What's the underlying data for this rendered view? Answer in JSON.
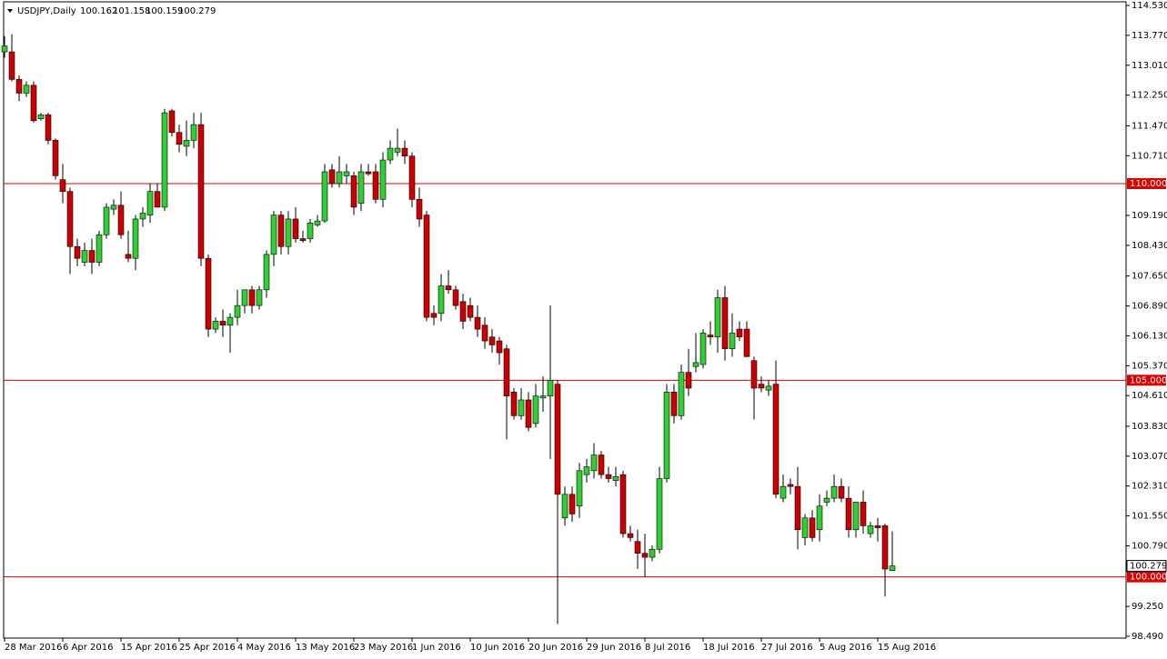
{
  "header": {
    "symbol": "USDJPY,Daily",
    "ohlc": [
      "100.162",
      "101.158",
      "100.159",
      "100.279"
    ]
  },
  "chart_data": {
    "type": "candlestick",
    "up_color": "#32cd32",
    "down_color": "#cc0000",
    "wick_color": "#000000",
    "hline_color": "#dd0000",
    "ylim": [
      98.49,
      114.53
    ],
    "yticks": [
      {
        "value": 114.53,
        "label": "114.530"
      },
      {
        "value": 113.77,
        "label": "113.770"
      },
      {
        "value": 113.01,
        "label": "113.010"
      },
      {
        "value": 112.25,
        "label": "112.250"
      },
      {
        "value": 111.47,
        "label": "111.470"
      },
      {
        "value": 110.71,
        "label": "110.710"
      },
      {
        "value": 109.19,
        "label": "109.190"
      },
      {
        "value": 108.43,
        "label": "108.430"
      },
      {
        "value": 107.65,
        "label": "107.650"
      },
      {
        "value": 106.89,
        "label": "106.890"
      },
      {
        "value": 106.13,
        "label": "106.130"
      },
      {
        "value": 105.37,
        "label": "105.370"
      },
      {
        "value": 104.61,
        "label": "104.610"
      },
      {
        "value": 103.83,
        "label": "103.830"
      },
      {
        "value": 103.07,
        "label": "103.070"
      },
      {
        "value": 102.31,
        "label": "102.310"
      },
      {
        "value": 101.55,
        "label": "101.550"
      },
      {
        "value": 100.79,
        "label": "100.790"
      },
      {
        "value": 99.25,
        "label": "99.250"
      },
      {
        "value": 98.49,
        "label": "98.490"
      }
    ],
    "hlines": [
      {
        "value": 110,
        "label": "110.000"
      },
      {
        "value": 105,
        "label": "105.000"
      },
      {
        "value": 100,
        "label": "100.000"
      }
    ],
    "last_price": {
      "value": 100.279,
      "label": "100.279"
    },
    "categories": [
      "28 Mar 2016",
      null,
      null,
      null,
      null,
      null,
      null,
      null,
      "6 Apr 2016",
      null,
      null,
      null,
      null,
      null,
      null,
      null,
      "15 Apr 2016",
      null,
      null,
      null,
      null,
      null,
      null,
      null,
      "25 Apr 2016",
      null,
      null,
      null,
      null,
      null,
      null,
      null,
      "4 May 2016",
      null,
      null,
      null,
      null,
      null,
      null,
      null,
      "13 May 2016",
      null,
      null,
      null,
      null,
      null,
      null,
      null,
      "23 May 2016",
      null,
      null,
      null,
      null,
      null,
      null,
      null,
      "1 Jun 2016",
      null,
      null,
      null,
      null,
      null,
      null,
      null,
      "10 Jun 2016",
      null,
      null,
      null,
      null,
      null,
      null,
      null,
      "20 Jun 2016",
      null,
      null,
      null,
      null,
      null,
      null,
      null,
      "29 Jun 2016",
      null,
      null,
      null,
      null,
      null,
      null,
      null,
      "8 Jul 2016",
      null,
      null,
      null,
      null,
      null,
      null,
      null,
      "18 Jul 2016",
      null,
      null,
      null,
      null,
      null,
      null,
      null,
      "27 Jul 2016",
      null,
      null,
      null,
      null,
      null,
      null,
      null,
      "5 Aug 2016",
      null,
      null,
      null,
      null,
      null,
      null,
      null,
      "15 Aug 2016",
      null,
      null
    ],
    "open": [
      113.35,
      113.35,
      112.65,
      112.3,
      112.5,
      111.65,
      111.75,
      111.1,
      110.1,
      109.8,
      108.4,
      108.0,
      108.3,
      108.0,
      108.7,
      109.35,
      109.45,
      108.2,
      108.1,
      109.1,
      109.2,
      109.8,
      109.4,
      111.85,
      111.3,
      110.95,
      111.1,
      111.5,
      108.1,
      106.3,
      106.5,
      106.4,
      106.6,
      106.9,
      107.3,
      106.9,
      107.3,
      108.2,
      109.2,
      108.4,
      109.1,
      108.6,
      108.6,
      108.95,
      109.05,
      110.35,
      110.0,
      110.2,
      110.2,
      109.5,
      110.3,
      110.3,
      109.6,
      110.6,
      110.8,
      110.9,
      110.7,
      109.6,
      109.2,
      106.7,
      106.7,
      107.4,
      107.3,
      107.0,
      106.9,
      106.6,
      106.4,
      106.1,
      106.0,
      105.8,
      104.7,
      104.1,
      104.5,
      103.9,
      104.55,
      104.6,
      104.9,
      101.5,
      102.1,
      101.8,
      102.6,
      102.7,
      103.1,
      102.6,
      102.45,
      102.6,
      101.1,
      100.9,
      100.6,
      100.5,
      100.7,
      102.5,
      104.7,
      104.1,
      105.2,
      105.35,
      105.4,
      106.15,
      106.1,
      107.1,
      105.8,
      106.3,
      106.3,
      105.5,
      104.9,
      104.75,
      104.9,
      102.0,
      102.35,
      102.3,
      101.0,
      101.5,
      101.2,
      101.9,
      102.0,
      102.3,
      102.0,
      101.2,
      101.9,
      101.1,
      101.3,
      101.3,
      100.162
    ],
    "high": [
      113.75,
      113.8,
      112.75,
      112.6,
      112.6,
      111.8,
      111.8,
      111.15,
      110.5,
      109.9,
      108.6,
      108.5,
      108.6,
      108.8,
      109.5,
      109.6,
      109.8,
      108.8,
      109.2,
      109.4,
      110.0,
      110.0,
      111.9,
      111.9,
      111.5,
      111.6,
      111.8,
      111.8,
      108.2,
      106.6,
      106.8,
      106.7,
      107.3,
      107.3,
      107.4,
      107.4,
      108.3,
      109.3,
      109.3,
      109.3,
      109.4,
      108.8,
      109.1,
      109.2,
      110.5,
      110.5,
      110.7,
      110.5,
      110.3,
      110.5,
      110.5,
      110.5,
      110.8,
      111.1,
      111.4,
      111.1,
      110.8,
      109.9,
      109.3,
      106.9,
      107.7,
      107.8,
      107.4,
      107.2,
      107.1,
      106.9,
      106.6,
      106.3,
      106.1,
      105.9,
      104.8,
      104.8,
      104.7,
      104.9,
      105.1,
      106.9,
      105.0,
      102.3,
      102.3,
      102.9,
      103.0,
      103.4,
      103.2,
      102.8,
      102.8,
      102.7,
      101.3,
      101.2,
      101.1,
      100.8,
      102.8,
      104.9,
      104.9,
      105.4,
      105.8,
      106.2,
      106.3,
      106.5,
      107.3,
      107.4,
      106.7,
      106.5,
      106.5,
      105.6,
      105.1,
      105.0,
      105.5,
      102.6,
      102.5,
      102.8,
      101.6,
      101.7,
      102.1,
      102.2,
      102.6,
      102.5,
      102.3,
      101.9,
      102.2,
      101.4,
      101.5,
      101.35,
      101.158
    ],
    "low": [
      113.2,
      112.6,
      112.1,
      112.2,
      111.55,
      111.6,
      111.0,
      110.1,
      109.5,
      107.7,
      107.9,
      107.9,
      107.7,
      107.9,
      108.6,
      109.2,
      108.6,
      108.0,
      107.8,
      108.9,
      109.0,
      109.4,
      109.3,
      111.2,
      110.8,
      110.7,
      110.9,
      107.9,
      106.1,
      106.2,
      106.1,
      105.7,
      106.4,
      106.7,
      106.7,
      106.8,
      107.1,
      107.9,
      108.2,
      108.2,
      108.5,
      108.5,
      108.5,
      108.9,
      109.0,
      109.9,
      109.9,
      110.0,
      109.2,
      109.3,
      110.2,
      109.5,
      109.4,
      110.5,
      110.7,
      110.5,
      109.4,
      108.9,
      106.5,
      106.4,
      106.5,
      107.2,
      106.8,
      106.3,
      106.5,
      106.1,
      105.8,
      105.7,
      105.4,
      103.5,
      104.0,
      104.0,
      103.7,
      103.8,
      104.2,
      103.0,
      98.8,
      101.3,
      101.4,
      101.5,
      102.4,
      102.5,
      102.5,
      102.4,
      102.3,
      101.0,
      100.9,
      100.2,
      100.0,
      100.4,
      100.6,
      102.4,
      103.9,
      104.0,
      104.6,
      105.2,
      105.3,
      105.9,
      105.7,
      105.5,
      105.6,
      106.0,
      105.6,
      104.0,
      104.7,
      104.6,
      102.0,
      101.9,
      102.1,
      100.7,
      100.8,
      100.9,
      100.9,
      101.8,
      101.9,
      101.9,
      101.0,
      101.0,
      101.1,
      101.0,
      100.9,
      99.5,
      100.159
    ],
    "close": [
      113.5,
      112.65,
      112.3,
      112.5,
      111.6,
      111.75,
      111.1,
      110.2,
      109.8,
      108.4,
      108.1,
      108.3,
      108.0,
      108.7,
      109.4,
      109.45,
      108.7,
      108.1,
      109.1,
      109.25,
      109.8,
      109.4,
      111.8,
      111.3,
      111.0,
      111.1,
      111.5,
      108.1,
      106.3,
      106.5,
      106.4,
      106.6,
      106.9,
      107.3,
      106.9,
      107.3,
      108.2,
      109.2,
      108.4,
      109.1,
      108.6,
      108.55,
      109.0,
      109.05,
      110.3,
      110.0,
      110.3,
      110.3,
      109.4,
      110.3,
      110.25,
      109.6,
      110.6,
      110.9,
      110.9,
      110.7,
      109.6,
      109.1,
      106.6,
      106.6,
      107.4,
      107.3,
      106.9,
      106.5,
      106.6,
      106.3,
      106.0,
      105.9,
      105.7,
      104.6,
      104.1,
      104.5,
      103.8,
      104.6,
      104.6,
      105.0,
      102.1,
      102.1,
      101.6,
      102.7,
      102.8,
      103.1,
      102.6,
      102.5,
      102.55,
      101.1,
      101.0,
      100.6,
      100.5,
      100.7,
      102.5,
      104.7,
      104.1,
      105.2,
      104.8,
      105.45,
      106.2,
      106.1,
      107.1,
      105.8,
      106.2,
      106.1,
      105.6,
      104.8,
      104.8,
      104.85,
      102.1,
      102.3,
      102.3,
      101.2,
      101.5,
      101.0,
      101.8,
      102.0,
      102.3,
      102.0,
      101.2,
      101.9,
      101.3,
      101.3,
      101.25,
      100.2,
      100.279
    ]
  }
}
